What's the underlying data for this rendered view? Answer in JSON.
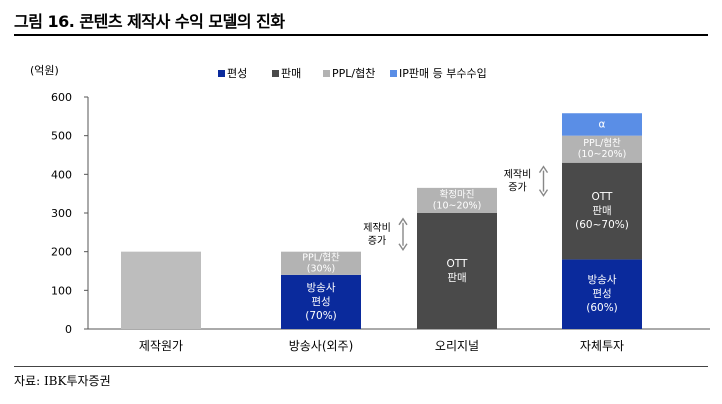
{
  "figure": {
    "title": "그림 16. 콘텐츠 제작사 수익 모델의 진화",
    "source": "자료: IBK투자증권"
  },
  "colors": {
    "편성": "#0a2a9c",
    "판매": "#4a4a4a",
    "PPL/협찬": "#b3b3b3",
    "IP판매 등 부수수입": "#5a8ee6",
    "cost": "#bdbdbd"
  },
  "chart_data": {
    "type": "bar",
    "stacked": true,
    "unit_label": "(억원)",
    "ylim": [
      0,
      600
    ],
    "yticks": [
      0,
      100,
      200,
      300,
      400,
      500,
      600
    ],
    "categories": [
      "제작원가",
      "방송사(외주)",
      "오리지널",
      "자체투자"
    ],
    "legend": [
      "편성",
      "판매",
      "PPL/협찬",
      "IP판매 등 부수수입"
    ],
    "legend_position": "top",
    "grid": false,
    "bars": [
      {
        "category": "제작원가",
        "segments": [
          {
            "series": "cost",
            "value": 200,
            "label": ""
          }
        ]
      },
      {
        "category": "방송사(외주)",
        "segments": [
          {
            "series": "편성",
            "value": 140,
            "label": "방송사\n편성\n(70%)"
          },
          {
            "series": "PPL/협찬",
            "value": 60,
            "label": "PPL/협찬\n(30%)"
          }
        ]
      },
      {
        "category": "오리지널",
        "segments": [
          {
            "series": "판매",
            "value": 300,
            "label": "OTT\n판매"
          },
          {
            "series": "PPL/협찬",
            "value": 65,
            "label": "확정마진\n(10~20%)"
          }
        ]
      },
      {
        "category": "자체투자",
        "segments": [
          {
            "series": "편성",
            "value": 180,
            "label": "방송사\n편성\n(60%)"
          },
          {
            "series": "판매",
            "value": 250,
            "label": "OTT\n판매\n(60~70%)"
          },
          {
            "series": "PPL/협찬",
            "value": 70,
            "label": "PPL/협찬\n(10~20%)"
          },
          {
            "series": "IP판매 등 부수수입",
            "value": 58,
            "label": "α"
          }
        ]
      }
    ],
    "annotations": [
      {
        "text": "제작비\n증가",
        "between": [
          1,
          2
        ],
        "arrow_range": [
          205,
          285
        ]
      },
      {
        "text": "제작비\n증가",
        "between": [
          2,
          3
        ],
        "arrow_range": [
          345,
          420
        ]
      }
    ]
  }
}
